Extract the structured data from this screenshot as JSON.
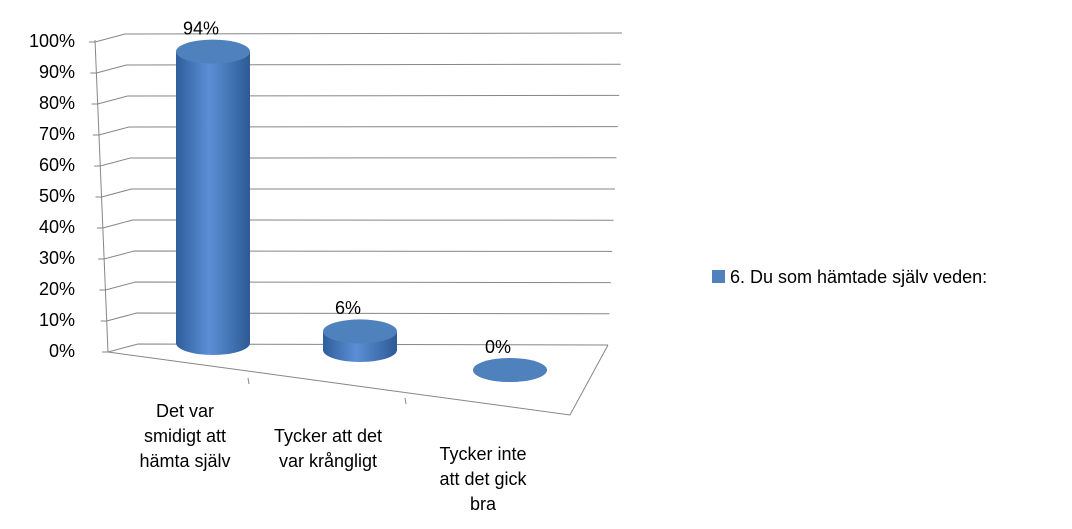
{
  "chart_data": {
    "type": "bar3d",
    "categories": [
      [
        "Det var",
        "smidigt att",
        "hämta själv"
      ],
      [
        "Tycker att det",
        "var krångligt"
      ],
      [
        "Tycker inte",
        "att det gick",
        "bra"
      ]
    ],
    "series": [
      {
        "name": "6. Du som hämtade själv veden:",
        "color": "#4f81bd",
        "values": [
          94,
          6,
          0
        ],
        "value_labels": [
          "94%",
          "6%",
          "0%"
        ]
      }
    ],
    "ylim": [
      0,
      100
    ],
    "yticks": [
      {
        "value": 0,
        "label": "0%"
      },
      {
        "value": 10,
        "label": "10%"
      },
      {
        "value": 20,
        "label": "20%"
      },
      {
        "value": 30,
        "label": "30%"
      },
      {
        "value": 40,
        "label": "40%"
      },
      {
        "value": 50,
        "label": "50%"
      },
      {
        "value": 60,
        "label": "60%"
      },
      {
        "value": 70,
        "label": "70%"
      },
      {
        "value": 80,
        "label": "80%"
      },
      {
        "value": 90,
        "label": "90%"
      },
      {
        "value": 100,
        "label": "100%"
      }
    ],
    "grid": true,
    "legend": "right"
  }
}
